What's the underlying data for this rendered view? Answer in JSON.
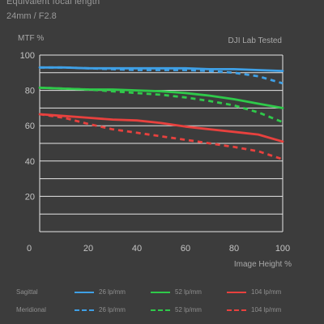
{
  "header": {
    "title": "Equivalent focal length",
    "subtitle": "24mm / F2.8"
  },
  "chart_data": {
    "type": "line",
    "ylabel": "MTF %",
    "xlabel": "Image Height %",
    "annotation": "DJI Lab Tested",
    "xlim": [
      0,
      100
    ],
    "ylim": [
      0,
      100
    ],
    "x_ticks": [
      0,
      20,
      40,
      60,
      80,
      100
    ],
    "y_ticks": [
      20,
      40,
      60,
      80,
      100
    ],
    "grid": true,
    "legend_position": "bottom",
    "x": [
      0,
      10,
      20,
      30,
      40,
      50,
      60,
      70,
      80,
      90,
      100
    ],
    "series": [
      {
        "name": "26 lp/mm",
        "group": "Sagittal",
        "style": "solid",
        "color": "#3fa0e6",
        "values": [
          93,
          93,
          92.5,
          92.5,
          92.5,
          92.5,
          92.5,
          92,
          92,
          91.5,
          91
        ]
      },
      {
        "name": "52 lp/mm",
        "group": "Sagittal",
        "style": "solid",
        "color": "#2fc94a",
        "values": [
          81.5,
          81,
          80.5,
          80.5,
          80,
          79.5,
          78.5,
          77,
          75,
          72.5,
          70
        ]
      },
      {
        "name": "104 lp/mm",
        "group": "Sagittal",
        "style": "solid",
        "color": "#e8413e",
        "values": [
          66.5,
          65.5,
          64.5,
          63.5,
          63,
          61.5,
          59.5,
          58,
          56.5,
          55,
          51
        ]
      },
      {
        "name": "26 lp/mm",
        "group": "Meridional",
        "style": "dashed",
        "color": "#3fa0e6",
        "values": [
          93,
          93,
          92.5,
          92,
          91.5,
          91.5,
          91.5,
          91,
          90,
          88,
          84
        ]
      },
      {
        "name": "52 lp/mm",
        "group": "Meridional",
        "style": "dashed",
        "color": "#2fc94a",
        "values": [
          81.5,
          81,
          80.5,
          79.5,
          78.5,
          77.5,
          76,
          74,
          71.5,
          67.5,
          62
        ]
      },
      {
        "name": "104 lp/mm",
        "group": "Meridional",
        "style": "dashed",
        "color": "#e8413e",
        "values": [
          66.5,
          64.5,
          61,
          58,
          56,
          54,
          52,
          50,
          48,
          45.5,
          41
        ]
      }
    ]
  },
  "legend": {
    "sagittal_label": "Sagittal",
    "meridional_label": "Meridional",
    "items": [
      "26 lp/mm",
      "52 lp/mm",
      "104 lp/mm"
    ]
  },
  "colors": {
    "background": "#3c3c3c",
    "grid": "#e6e6e6",
    "text": "#bdbdbd"
  }
}
